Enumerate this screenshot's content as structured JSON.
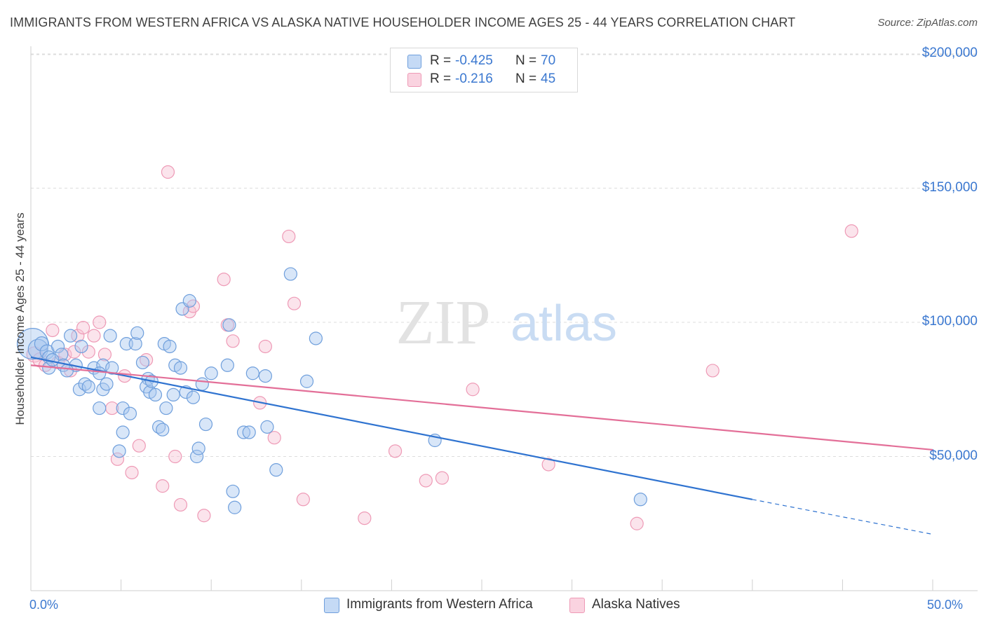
{
  "header": {
    "title": "IMMIGRANTS FROM WESTERN AFRICA VS ALASKA NATIVE HOUSEHOLDER INCOME AGES 25 - 44 YEARS CORRELATION CHART",
    "source": "Source: ZipAtlas.com"
  },
  "watermark": {
    "zip": "ZIP",
    "atlas": "atlas"
  },
  "legend": {
    "rows": [
      {
        "r_label": "R =",
        "r_value": "-0.425",
        "n_label": "N =",
        "n_value": "70",
        "color": "#6fa3e0"
      },
      {
        "r_label": "R =",
        "r_value": "-0.216",
        "n_label": "N =",
        "n_value": "45",
        "color": "#f0a0bb"
      }
    ]
  },
  "bottom_legend": {
    "series1": "Immigrants from Western Africa",
    "series2": "Alaska Natives"
  },
  "colors": {
    "blue_fill": "#a9c8ef",
    "blue_stroke": "#6f9fdc",
    "blue_line": "#2f73d0",
    "pink_fill": "#f6c4d5",
    "pink_stroke": "#ee9ab6",
    "pink_line": "#e36f98",
    "axis_text": "#3b78d0"
  },
  "chart_data": {
    "type": "scatter",
    "title": "IMMIGRANTS FROM WESTERN AFRICA VS ALASKA NATIVE HOUSEHOLDER INCOME AGES 25 - 44 YEARS CORRELATION CHART",
    "xlabel": "",
    "ylabel": "Householder Income Ages 25 - 44 years",
    "x_unit": "percent",
    "xlim": [
      0,
      50
    ],
    "ylim": [
      0,
      210000
    ],
    "x_tick_labels": [
      "0.0%",
      "50.0%"
    ],
    "y_ticks": [
      50000,
      100000,
      150000,
      200000
    ],
    "y_tick_labels": [
      "$50,000",
      "$100,000",
      "$150,000",
      "$200,000"
    ],
    "grid": "horizontal dashed",
    "legend_position": "top-center",
    "series": [
      {
        "name": "Immigrants from Western Africa",
        "color": "#6fa3e0",
        "r": -0.425,
        "n": 70,
        "trend": {
          "x0": 0.0,
          "y0": 87000,
          "x1": 40.0,
          "y1": 34000,
          "dash_x1": 50.0,
          "dash_y1": 21000
        },
        "points": [
          [
            0.1,
            92000,
            22
          ],
          [
            0.4,
            90000,
            14
          ],
          [
            0.6,
            92000,
            10
          ],
          [
            0.9,
            89000,
            10
          ],
          [
            1.0,
            87000,
            9
          ],
          [
            1.5,
            91000,
            9
          ],
          [
            1.7,
            88000,
            9
          ],
          [
            1.0,
            83000,
            9
          ],
          [
            1.8,
            84000,
            9
          ],
          [
            2.5,
            84000,
            9
          ],
          [
            2.2,
            95000,
            9
          ],
          [
            2.8,
            91000,
            9
          ],
          [
            2.7,
            75000,
            9
          ],
          [
            3.0,
            77000,
            9
          ],
          [
            3.2,
            76000,
            9
          ],
          [
            3.5,
            83000,
            9
          ],
          [
            4.0,
            84000,
            9
          ],
          [
            3.8,
            81000,
            9
          ],
          [
            4.0,
            75000,
            9
          ],
          [
            4.2,
            77000,
            9
          ],
          [
            3.8,
            68000,
            9
          ],
          [
            4.5,
            83000,
            9
          ],
          [
            4.4,
            95000,
            9
          ],
          [
            5.1,
            68000,
            9
          ],
          [
            5.1,
            59000,
            9
          ],
          [
            5.3,
            92000,
            9
          ],
          [
            5.5,
            66000,
            9
          ],
          [
            4.9,
            52000,
            9
          ],
          [
            5.8,
            92000,
            9
          ],
          [
            5.9,
            96000,
            9
          ],
          [
            6.2,
            85000,
            9
          ],
          [
            6.5,
            79000,
            9
          ],
          [
            6.4,
            76000,
            9
          ],
          [
            6.6,
            74000,
            9
          ],
          [
            6.7,
            78000,
            9
          ],
          [
            6.9,
            73000,
            9
          ],
          [
            7.1,
            61000,
            9
          ],
          [
            7.3,
            60000,
            9
          ],
          [
            7.4,
            92000,
            9
          ],
          [
            7.5,
            68000,
            9
          ],
          [
            7.7,
            91000,
            9
          ],
          [
            7.9,
            73000,
            9
          ],
          [
            8.0,
            84000,
            9
          ],
          [
            8.3,
            83000,
            9
          ],
          [
            8.4,
            105000,
            9
          ],
          [
            8.6,
            74000,
            9
          ],
          [
            8.8,
            108000,
            9
          ],
          [
            9.0,
            72000,
            9
          ],
          [
            9.2,
            50000,
            9
          ],
          [
            9.3,
            53000,
            9
          ],
          [
            9.5,
            77000,
            9
          ],
          [
            9.7,
            62000,
            9
          ],
          [
            10.0,
            81000,
            9
          ],
          [
            10.9,
            84000,
            9
          ],
          [
            11.0,
            99000,
            9
          ],
          [
            11.2,
            37000,
            9
          ],
          [
            11.3,
            31000,
            9
          ],
          [
            11.8,
            59000,
            9
          ],
          [
            12.1,
            59000,
            9
          ],
          [
            12.3,
            81000,
            9
          ],
          [
            13.0,
            80000,
            9
          ],
          [
            13.1,
            61000,
            9
          ],
          [
            13.6,
            45000,
            9
          ],
          [
            14.4,
            118000,
            9
          ],
          [
            15.3,
            78000,
            9
          ],
          [
            15.8,
            94000,
            9
          ],
          [
            22.4,
            56000,
            9
          ],
          [
            33.8,
            34000,
            9
          ],
          [
            1.2,
            86000,
            9
          ],
          [
            2.0,
            82000,
            9
          ]
        ]
      },
      {
        "name": "Alaska Natives",
        "color": "#f0a0bb",
        "r": -0.216,
        "n": 45,
        "trend": {
          "x0": 0.0,
          "y0": 84000,
          "x1": 50.0,
          "y1": 52500
        },
        "points": [
          [
            0.2,
            88000,
            11
          ],
          [
            0.5,
            86000,
            10
          ],
          [
            0.8,
            84000,
            9
          ],
          [
            1.2,
            97000,
            9
          ],
          [
            1.5,
            85000,
            9
          ],
          [
            1.9,
            88000,
            9
          ],
          [
            2.2,
            82000,
            9
          ],
          [
            2.4,
            89000,
            9
          ],
          [
            2.6,
            95000,
            9
          ],
          [
            2.9,
            98000,
            9
          ],
          [
            3.2,
            89000,
            9
          ],
          [
            3.5,
            95000,
            9
          ],
          [
            3.8,
            100000,
            9
          ],
          [
            4.1,
            88000,
            9
          ],
          [
            4.5,
            68000,
            9
          ],
          [
            4.8,
            49000,
            9
          ],
          [
            5.2,
            80000,
            9
          ],
          [
            5.6,
            44000,
            9
          ],
          [
            6.0,
            54000,
            9
          ],
          [
            6.4,
            86000,
            9
          ],
          [
            7.3,
            39000,
            9
          ],
          [
            7.6,
            156000,
            9
          ],
          [
            8.0,
            50000,
            9
          ],
          [
            8.3,
            32000,
            9
          ],
          [
            8.8,
            104000,
            9
          ],
          [
            9.0,
            106000,
            9
          ],
          [
            9.6,
            28000,
            9
          ],
          [
            10.7,
            116000,
            9
          ],
          [
            10.9,
            99000,
            9
          ],
          [
            11.2,
            93000,
            9
          ],
          [
            12.7,
            70000,
            9
          ],
          [
            13.0,
            91000,
            9
          ],
          [
            13.5,
            57000,
            9
          ],
          [
            14.3,
            132000,
            9
          ],
          [
            14.6,
            107000,
            9
          ],
          [
            15.1,
            34000,
            9
          ],
          [
            18.5,
            27000,
            9
          ],
          [
            20.2,
            52000,
            9
          ],
          [
            21.9,
            41000,
            9
          ],
          [
            22.8,
            42000,
            9
          ],
          [
            24.5,
            75000,
            9
          ],
          [
            28.7,
            47000,
            9
          ],
          [
            33.6,
            25000,
            9
          ],
          [
            37.8,
            82000,
            9
          ],
          [
            45.5,
            134000,
            9
          ]
        ]
      }
    ]
  }
}
